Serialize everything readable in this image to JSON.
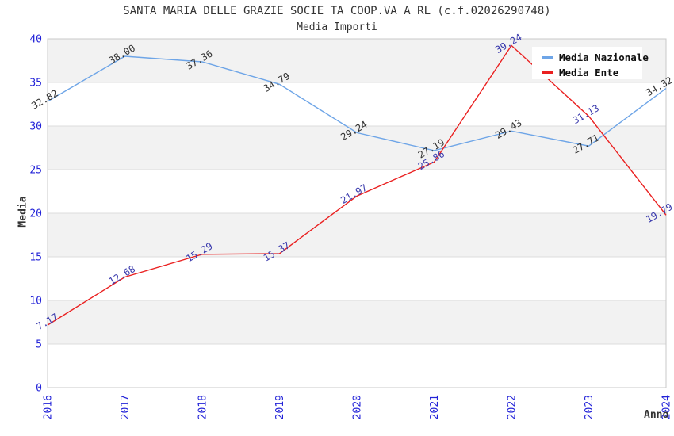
{
  "header": {
    "title": "SANTA MARIA DELLE GRAZIE SOCIE TA COOP.VA A RL (c.f.02026290748)",
    "subtitle": "Media Importi"
  },
  "chart_data": {
    "type": "line",
    "title": "SANTA MARIA DELLE GRAZIE SOCIE TA COOP.VA A RL (c.f.02026290748)",
    "subtitle": "Media Importi",
    "x_label": "Anno",
    "y_label": "Media",
    "categories": [
      "2016",
      "2017",
      "2018",
      "2019",
      "2020",
      "2021",
      "2022",
      "2023",
      "2024"
    ],
    "series": [
      {
        "name": "Media Nazionale",
        "color": "#6ea5e7",
        "label_color": "#303030",
        "values": [
          32.82,
          38.0,
          37.36,
          34.79,
          29.24,
          27.19,
          29.43,
          27.71,
          34.32
        ]
      },
      {
        "name": "Media Ente",
        "color": "#ea2020",
        "label_color": "#3a3aad",
        "values": [
          7.17,
          12.68,
          15.29,
          15.37,
          21.97,
          25.86,
          39.24,
          31.13,
          19.79
        ]
      }
    ],
    "ylim": [
      0,
      40
    ],
    "ystep": 5,
    "y_tick_labels": [
      "0",
      "5",
      "10",
      "15",
      "20",
      "25",
      "30",
      "35",
      "40"
    ],
    "legend_position": "top-right",
    "grid": {
      "band_color": "#f2f2f2",
      "line_color": "#dcdcdc",
      "border_color": "#c8c8c8"
    },
    "tick_color": "#2323d8",
    "point_label_rotation_deg": -30,
    "point_label_decimals": 2
  }
}
